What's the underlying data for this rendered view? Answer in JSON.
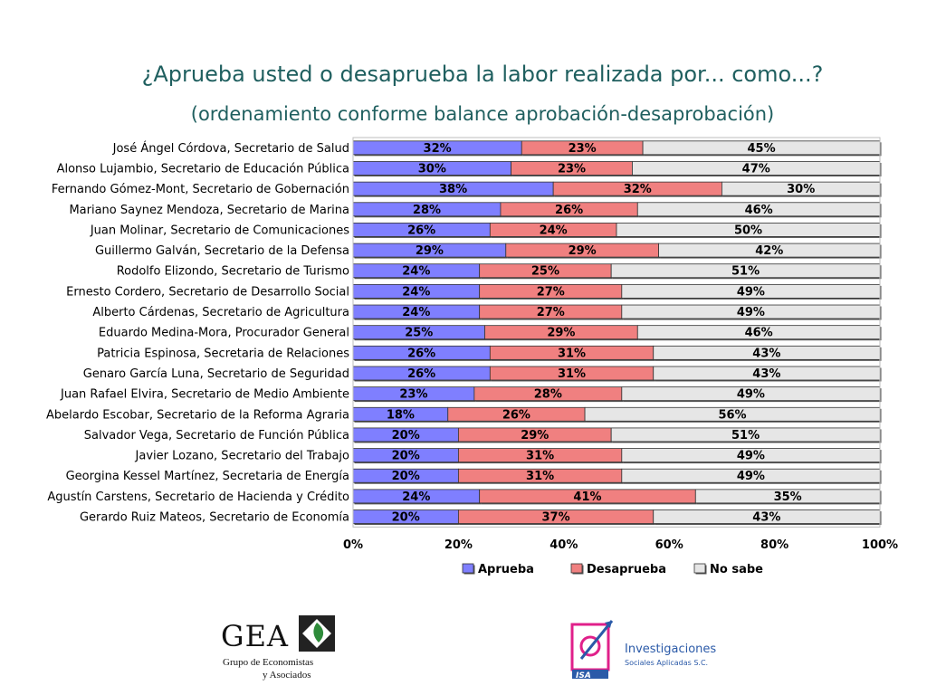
{
  "chart_data": {
    "type": "bar",
    "orientation": "horizontal",
    "stacked": true,
    "title": "¿Aprueba usted o desaprueba la labor realizada por... como...?",
    "subtitle": "(ordenamiento conforme balance aprobación-desaprobación)",
    "categories": [
      "José Ángel Córdova, Secretario de Salud",
      "Alonso Lujambio, Secretario de Educación Pública",
      "Fernando Gómez-Mont, Secretario de Gobernación",
      "Mariano Saynez Mendoza, Secretario de Marina",
      "Juan Molinar, Secretario de Comunicaciones",
      "Guillermo Galván, Secretario de la Defensa",
      "Rodolfo Elizondo, Secretario de Turismo",
      "Ernesto Cordero, Secretario de Desarrollo Social",
      "Alberto Cárdenas, Secretario de Agricultura",
      "Eduardo Medina-Mora, Procurador General",
      "Patricia Espinosa, Secretaria de Relaciones",
      "Genaro García Luna, Secretario de Seguridad",
      "Juan Rafael Elvira, Secretario de Medio Ambiente",
      "Abelardo Escobar, Secretario de la Reforma Agraria",
      "Salvador Vega, Secretario de Función Pública",
      "Javier Lozano, Secretario del Trabajo",
      "Georgina Kessel Martínez, Secretaria de Energía",
      "Agustín Carstens, Secretario de Hacienda y Crédito",
      "Gerardo Ruiz Mateos, Secretario de Economía"
    ],
    "series": [
      {
        "name": "Aprueba",
        "color": "#7f7fff",
        "values": [
          32,
          30,
          38,
          28,
          26,
          29,
          24,
          24,
          24,
          25,
          26,
          26,
          23,
          18,
          20,
          20,
          20,
          24,
          20
        ]
      },
      {
        "name": "Desaprueba",
        "color": "#f08080",
        "values": [
          23,
          23,
          32,
          26,
          24,
          29,
          25,
          27,
          27,
          29,
          31,
          31,
          28,
          26,
          29,
          31,
          31,
          41,
          37
        ]
      },
      {
        "name": "No sabe",
        "color": "#e6e6e6",
        "values": [
          45,
          47,
          30,
          46,
          50,
          42,
          51,
          49,
          49,
          46,
          43,
          43,
          49,
          56,
          51,
          49,
          49,
          35,
          43
        ]
      }
    ],
    "xlim": [
      0,
      100
    ],
    "xticks": [
      "0%",
      "20%",
      "40%",
      "60%",
      "80%",
      "100%"
    ],
    "legend_position": "bottom"
  },
  "logos": {
    "gea": {
      "name": "GEA",
      "line1": "Grupo de Economistas",
      "line2": "y Asociados"
    },
    "isa": {
      "mark": "ISA",
      "line1": "Investigaciones",
      "line2": "Sociales Aplicadas S.C."
    }
  }
}
